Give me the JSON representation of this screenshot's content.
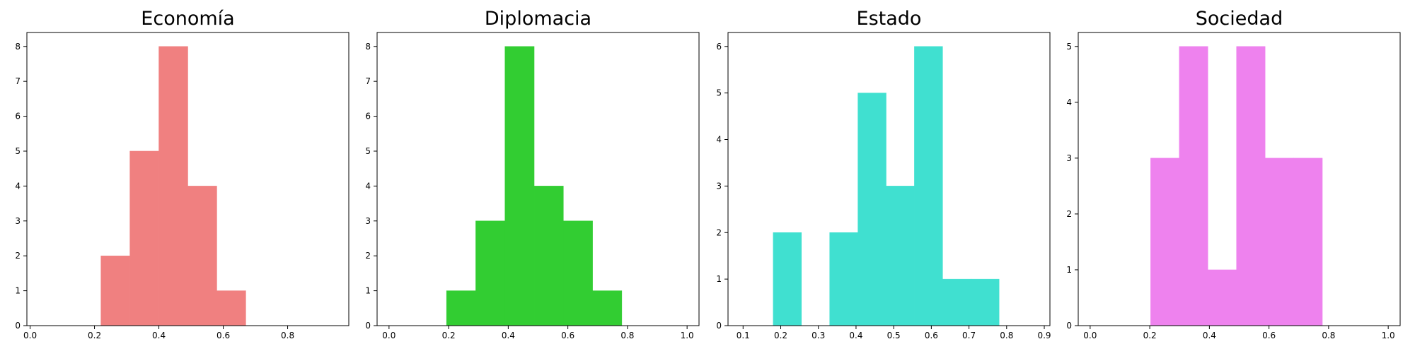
{
  "chart_data": [
    {
      "type": "bar",
      "title": "Economía",
      "color": "#f08080",
      "xlim": [
        -0.01,
        0.99
      ],
      "ylim": [
        0,
        8.4
      ],
      "xticks": [
        "0.0",
        "0.2",
        "0.4",
        "0.6",
        "0.8"
      ],
      "yticks": [
        "0",
        "1",
        "2",
        "3",
        "4",
        "5",
        "6",
        "7",
        "8"
      ],
      "bins": [
        {
          "x0": 0.22,
          "x1": 0.31,
          "count": 2
        },
        {
          "x0": 0.31,
          "x1": 0.4,
          "count": 5
        },
        {
          "x0": 0.4,
          "x1": 0.49,
          "count": 8
        },
        {
          "x0": 0.49,
          "x1": 0.58,
          "count": 4
        },
        {
          "x0": 0.58,
          "x1": 0.67,
          "count": 1
        }
      ]
    },
    {
      "type": "bar",
      "title": "Diplomacia",
      "color": "#32cd32",
      "xlim": [
        -0.04,
        1.04
      ],
      "ylim": [
        0,
        8.4
      ],
      "xticks": [
        "0.0",
        "0.2",
        "0.4",
        "0.6",
        "0.8",
        "1.0"
      ],
      "yticks": [
        "0",
        "1",
        "2",
        "3",
        "4",
        "5",
        "6",
        "7",
        "8"
      ],
      "bins": [
        {
          "x0": 0.193,
          "x1": 0.291,
          "count": 1
        },
        {
          "x0": 0.291,
          "x1": 0.389,
          "count": 3
        },
        {
          "x0": 0.389,
          "x1": 0.487,
          "count": 8
        },
        {
          "x0": 0.487,
          "x1": 0.585,
          "count": 4
        },
        {
          "x0": 0.585,
          "x1": 0.683,
          "count": 3
        },
        {
          "x0": 0.683,
          "x1": 0.781,
          "count": 1
        }
      ]
    },
    {
      "type": "bar",
      "title": "Estado",
      "color": "#40e0d0",
      "xlim": [
        0.06,
        0.915
      ],
      "ylim": [
        0,
        6.3
      ],
      "xticks": [
        "0.1",
        "0.2",
        "0.3",
        "0.4",
        "0.5",
        "0.6",
        "0.7",
        "0.8",
        "0.9"
      ],
      "yticks": [
        "0",
        "1",
        "2",
        "3",
        "4",
        "5",
        "6"
      ],
      "bins": [
        {
          "x0": 0.18,
          "x1": 0.255,
          "count": 2
        },
        {
          "x0": 0.255,
          "x1": 0.33,
          "count": 0
        },
        {
          "x0": 0.33,
          "x1": 0.405,
          "count": 2
        },
        {
          "x0": 0.405,
          "x1": 0.48,
          "count": 5
        },
        {
          "x0": 0.48,
          "x1": 0.555,
          "count": 3
        },
        {
          "x0": 0.555,
          "x1": 0.63,
          "count": 6
        },
        {
          "x0": 0.63,
          "x1": 0.705,
          "count": 1
        },
        {
          "x0": 0.705,
          "x1": 0.78,
          "count": 1
        }
      ]
    },
    {
      "type": "bar",
      "title": "Sociedad",
      "color": "#ee82ee",
      "xlim": [
        -0.04,
        1.04
      ],
      "ylim": [
        0,
        5.25
      ],
      "xticks": [
        "0.0",
        "0.2",
        "0.4",
        "0.6",
        "0.8",
        "1.0"
      ],
      "yticks": [
        "0",
        "1",
        "2",
        "3",
        "4",
        "5"
      ],
      "bins": [
        {
          "x0": 0.203,
          "x1": 0.299,
          "count": 3
        },
        {
          "x0": 0.299,
          "x1": 0.395,
          "count": 5
        },
        {
          "x0": 0.395,
          "x1": 0.491,
          "count": 1
        },
        {
          "x0": 0.491,
          "x1": 0.587,
          "count": 5
        },
        {
          "x0": 0.587,
          "x1": 0.683,
          "count": 3
        },
        {
          "x0": 0.683,
          "x1": 0.779,
          "count": 3
        }
      ]
    }
  ]
}
